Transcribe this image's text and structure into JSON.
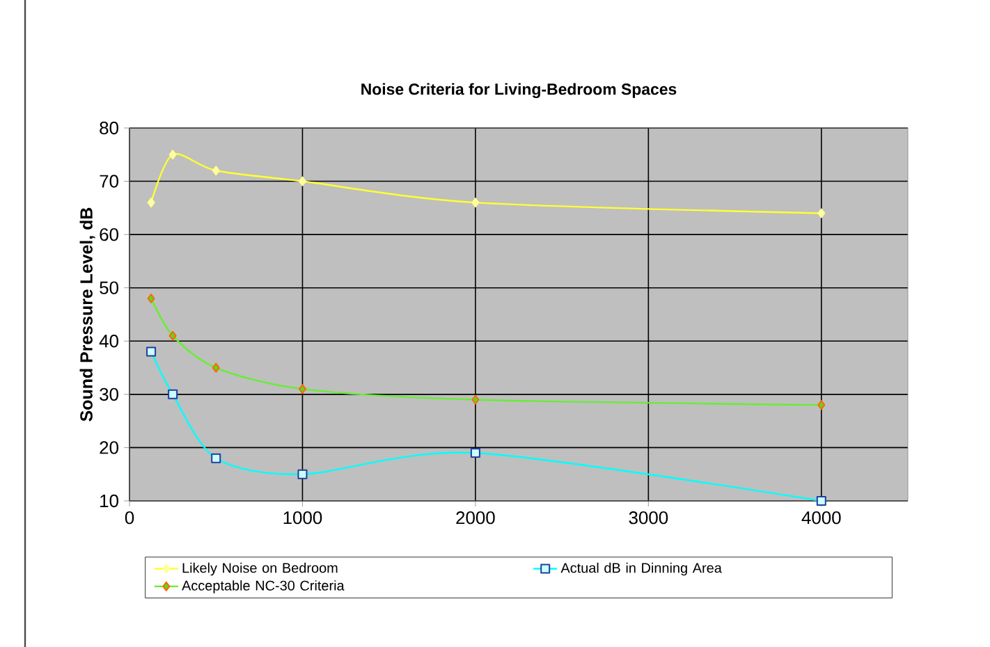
{
  "chart_data": {
    "type": "line",
    "title": "Noise Criteria for Living-Bedroom Spaces",
    "ylabel": "Sound Pressure Level, dB",
    "x": [
      125,
      250,
      500,
      1000,
      2000,
      4000
    ],
    "series": [
      {
        "name": "Likely Noise on Bedroom",
        "color": "#ffff33",
        "marker": "diamond",
        "values": [
          66,
          75,
          72,
          70,
          66,
          64
        ]
      },
      {
        "name": "Actual dB in Dinning Area",
        "color": "#00ffff",
        "marker": "square",
        "values": [
          38,
          30,
          18,
          15,
          19,
          10
        ]
      },
      {
        "name": "Acceptable NC-30 Criteria",
        "color": "#66ee33",
        "marker": "diamond",
        "values": [
          48,
          41,
          35,
          31,
          29,
          28
        ]
      }
    ],
    "xlim": [
      0,
      4500
    ],
    "xticks": [
      0,
      1000,
      2000,
      3000,
      4000
    ],
    "ylim": [
      10,
      80
    ],
    "yticks": [
      10,
      20,
      30,
      40,
      50,
      60,
      70,
      80
    ],
    "grid": true,
    "legend": "bottom",
    "line_style": "solid"
  }
}
